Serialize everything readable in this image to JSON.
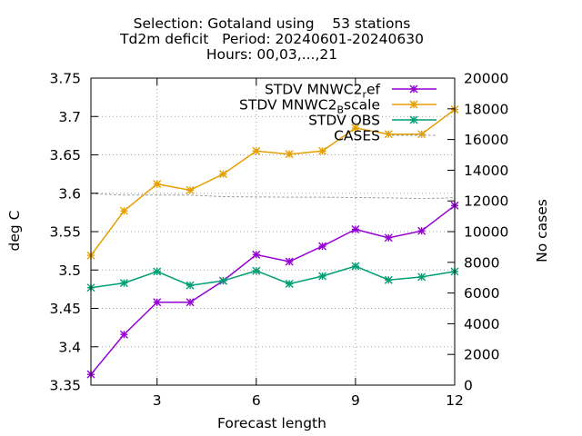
{
  "chart_data": {
    "type": "line",
    "title_lines": [
      "Selection: Gotaland using    53 stations",
      "Td2m deficit   Period: 20240601-20240630",
      "Hours: 00,03,...,21"
    ],
    "xlabel": "Forecast length",
    "ylabel": "deg C",
    "y2label": "No cases",
    "xlim": [
      1,
      12
    ],
    "ylim": [
      3.35,
      3.75
    ],
    "y2lim": [
      0,
      20000
    ],
    "x_ticks": [
      3,
      6,
      9,
      12
    ],
    "y_ticks": [
      "3.35",
      "3.4",
      "3.45",
      "3.5",
      "3.55",
      "3.6",
      "3.65",
      "3.7",
      "3.75"
    ],
    "y2_ticks": [
      "0",
      "2000",
      "4000",
      "6000",
      "8000",
      "10000",
      "12000",
      "14000",
      "16000",
      "18000",
      "20000"
    ],
    "grid": true,
    "legend_position": "top-right",
    "x": [
      1,
      2,
      3,
      4,
      5,
      6,
      7,
      8,
      9,
      10,
      11,
      12
    ],
    "series": [
      {
        "name": "STDV MNWC2_ref",
        "legend_main": "STDV MNWC2",
        "legend_sub": "r",
        "legend_tail": "ef",
        "axis": "y",
        "color": "#9400d3",
        "values": [
          3.364,
          3.416,
          3.458,
          3.458,
          3.486,
          3.52,
          3.511,
          3.531,
          3.553,
          3.542,
          3.551,
          3.584
        ]
      },
      {
        "name": "STDV MNWC2_Bscale",
        "legend_main": "STDV MNWC2",
        "legend_sub": "B",
        "legend_tail": "scale",
        "axis": "y",
        "color": "#e69f00",
        "values": [
          3.519,
          3.577,
          3.612,
          3.604,
          3.625,
          3.655,
          3.651,
          3.655,
          3.685,
          3.677,
          3.677,
          3.709
        ]
      },
      {
        "name": "STDV OBS",
        "legend_main": "STDV OBS",
        "legend_sub": "",
        "legend_tail": "",
        "axis": "y",
        "color": "#009e73",
        "values": [
          3.477,
          3.483,
          3.498,
          3.48,
          3.486,
          3.499,
          3.482,
          3.492,
          3.505,
          3.487,
          3.491,
          3.498
        ]
      },
      {
        "name": "CASES",
        "legend_main": "CASES",
        "legend_sub": "",
        "legend_tail": "",
        "axis": "y2",
        "color": "#a0a0a0",
        "dashed": true,
        "values": [
          12480,
          12380,
          12380,
          12380,
          12280,
          12260,
          12240,
          12240,
          12220,
          12200,
          12150,
          12200
        ]
      }
    ]
  }
}
